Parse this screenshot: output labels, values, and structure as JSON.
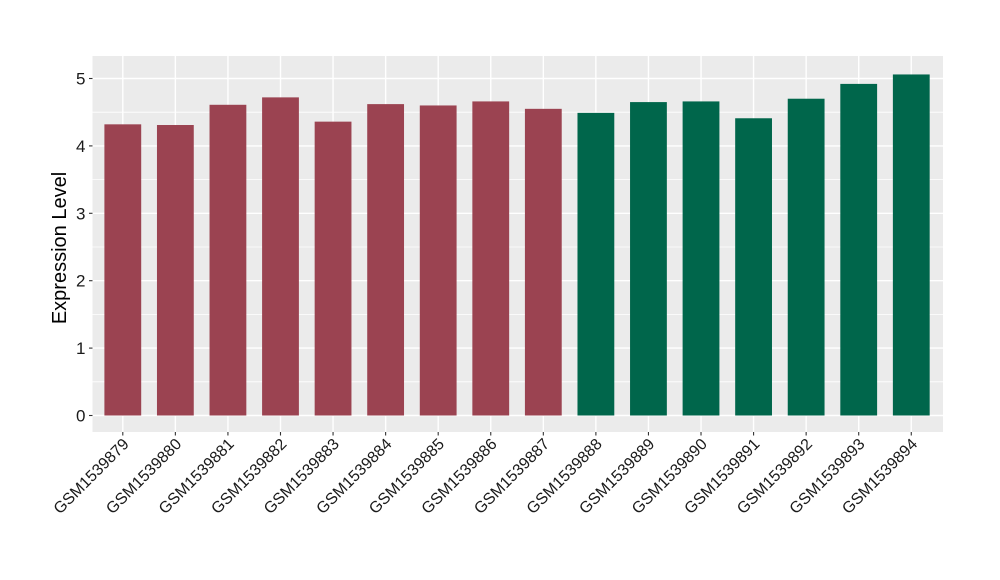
{
  "chart_data": {
    "type": "bar",
    "title": "",
    "xlabel": "",
    "ylabel": "Expression Level",
    "categories": [
      "GSM1539879",
      "GSM1539880",
      "GSM1539881",
      "GSM1539882",
      "GSM1539883",
      "GSM1539884",
      "GSM1539885",
      "GSM1539886",
      "GSM1539887",
      "GSM1539888",
      "GSM1539889",
      "GSM1539890",
      "GSM1539891",
      "GSM1539892",
      "GSM1539893",
      "GSM1539894"
    ],
    "values": [
      4.32,
      4.31,
      4.61,
      4.72,
      4.36,
      4.62,
      4.6,
      4.66,
      4.55,
      4.49,
      4.65,
      4.66,
      4.41,
      4.7,
      4.92,
      5.06
    ],
    "bar_colors": [
      "#9B4351",
      "#9B4351",
      "#9B4351",
      "#9B4351",
      "#9B4351",
      "#9B4351",
      "#9B4351",
      "#9B4351",
      "#9B4351",
      "#00664B",
      "#00664B",
      "#00664B",
      "#00664B",
      "#00664B",
      "#00664B",
      "#00664B"
    ],
    "yticks": [
      0,
      1,
      2,
      3,
      4,
      5
    ],
    "minor_yticks": [
      0.5,
      1.5,
      2.5,
      3.5,
      4.5
    ],
    "ylim": [
      0,
      5.33
    ],
    "grid": true,
    "legend": false,
    "panel_bg": "#EBEBEB",
    "grid_color": "#FFFFFF",
    "figure_bg": "#FFFFFF",
    "tick_mark_color": "#333333",
    "tick_label_color": "#1A1A1A",
    "axis_title_color": "#000000"
  }
}
